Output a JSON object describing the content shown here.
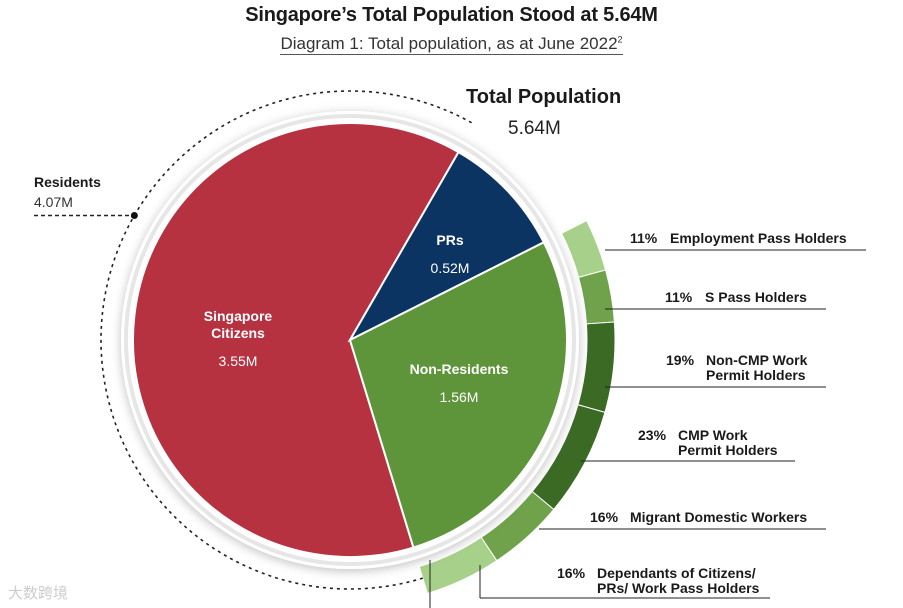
{
  "header": {
    "title": "Singapore’s Total Population Stood at 5.64M",
    "subtitle": "Diagram 1: Total population, as at June 2022",
    "subtitle_sup": "2"
  },
  "total": {
    "label": "Total Population",
    "value": "5.64M"
  },
  "residents": {
    "label": "Residents",
    "value": "4.07M"
  },
  "watermark": "大数跨境",
  "colors": {
    "citizens": "#B73241",
    "prs": "#0C3462",
    "non_residents": "#5F953A",
    "ring_light": "#A7D08A",
    "ring_mid": "#6FA24A",
    "ring_dark": "#3B6A25"
  },
  "chart_data": {
    "type": "pie",
    "title": "Singapore’s Total Population Stood at 5.64M",
    "slices": [
      {
        "name": "Singapore Citizens",
        "label_lines": [
          "Singapore",
          "Citizens"
        ],
        "value": 3.55,
        "display": "3.55M"
      },
      {
        "name": "PRs",
        "label_lines": [
          "PRs"
        ],
        "value": 0.52,
        "display": "0.52M"
      },
      {
        "name": "Non-Residents",
        "label_lines": [
          "Non-Residents"
        ],
        "value": 1.56,
        "display": "1.56M"
      }
    ],
    "non_resident_breakdown": [
      {
        "pct": "11%",
        "lines": [
          "Employment Pass Holders"
        ],
        "value": 11,
        "shade": "light"
      },
      {
        "pct": "11%",
        "lines": [
          "S Pass Holders"
        ],
        "value": 11,
        "shade": "mid"
      },
      {
        "pct": "19%",
        "lines": [
          "Non-CMP Work",
          "Permit Holders"
        ],
        "value": 19,
        "shade": "dark"
      },
      {
        "pct": "23%",
        "lines": [
          "CMP Work",
          "Permit Holders"
        ],
        "value": 23,
        "shade": "dark"
      },
      {
        "pct": "16%",
        "lines": [
          "Migrant Domestic Workers"
        ],
        "value": 16,
        "shade": "mid"
      },
      {
        "pct": "16%",
        "lines": [
          "Dependants of Citizens/",
          "PRs/ Work Pass Holders"
        ],
        "value": 16,
        "shade": "light"
      }
    ]
  }
}
